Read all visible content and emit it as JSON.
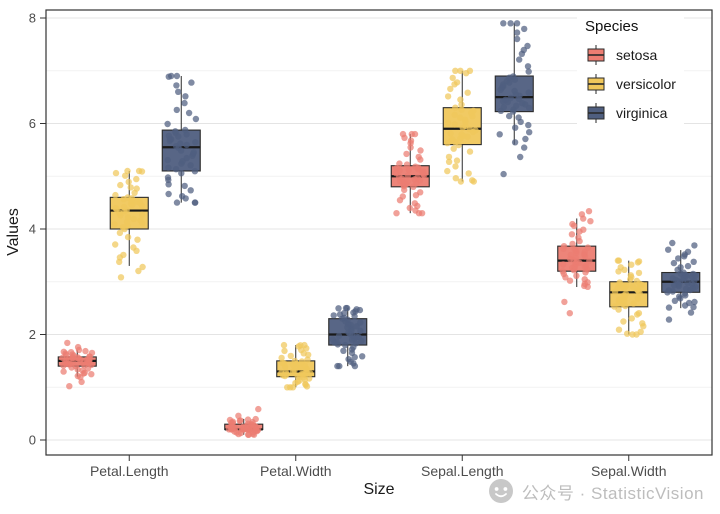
{
  "watermark": {
    "text": "公众号 · StatisticVision"
  },
  "legend": {
    "title": "Species",
    "items": [
      {
        "label": "setosa",
        "color": "#EC7D72"
      },
      {
        "label": "versicolor",
        "color": "#F0C75B"
      },
      {
        "label": "virginica",
        "color": "#4F5E7F"
      }
    ]
  },
  "chart_data": {
    "type": "boxplot",
    "overlay": "jittered points",
    "title": "",
    "xlabel": "Size",
    "ylabel": "Values",
    "categories": [
      "Petal.Length",
      "Petal.Width",
      "Sepal.Length",
      "Sepal.Width"
    ],
    "ylim": [
      0,
      8
    ],
    "yticks": [
      0,
      2,
      4,
      6,
      8
    ],
    "grid": true,
    "legend_position": "inside-top-right",
    "n_points_per_group": 50,
    "stats_format": [
      "min",
      "whisker_low",
      "q1",
      "median",
      "q3",
      "whisker_high",
      "max"
    ],
    "series": [
      {
        "name": "setosa",
        "color": "#EC7D72",
        "stats": [
          [
            1.0,
            1.2,
            1.4,
            1.5,
            1.575,
            1.7,
            1.9
          ],
          [
            0.1,
            0.1,
            0.2,
            0.2,
            0.3,
            0.4,
            0.6
          ],
          [
            4.3,
            4.3,
            4.8,
            5.0,
            5.2,
            5.8,
            5.8
          ],
          [
            2.3,
            2.9,
            3.2,
            3.4,
            3.675,
            4.2,
            4.4
          ]
        ]
      },
      {
        "name": "versicolor",
        "color": "#F0C75B",
        "stats": [
          [
            3.0,
            3.3,
            4.0,
            4.35,
            4.6,
            5.1,
            5.1
          ],
          [
            1.0,
            1.0,
            1.2,
            1.3,
            1.5,
            1.8,
            1.8
          ],
          [
            4.9,
            4.9,
            5.6,
            5.9,
            6.3,
            7.0,
            7.0
          ],
          [
            2.0,
            2.0,
            2.525,
            2.8,
            3.0,
            3.4,
            3.4
          ]
        ]
      },
      {
        "name": "virginica",
        "color": "#4F5E7F",
        "stats": [
          [
            4.5,
            4.5,
            5.1,
            5.55,
            5.875,
            6.9,
            6.9
          ],
          [
            1.4,
            1.4,
            1.8,
            2.0,
            2.3,
            2.5,
            2.5
          ],
          [
            4.9,
            5.6,
            6.225,
            6.5,
            6.9,
            7.9,
            7.9
          ],
          [
            2.2,
            2.5,
            2.8,
            3.0,
            3.175,
            3.6,
            3.8
          ]
        ]
      }
    ]
  }
}
